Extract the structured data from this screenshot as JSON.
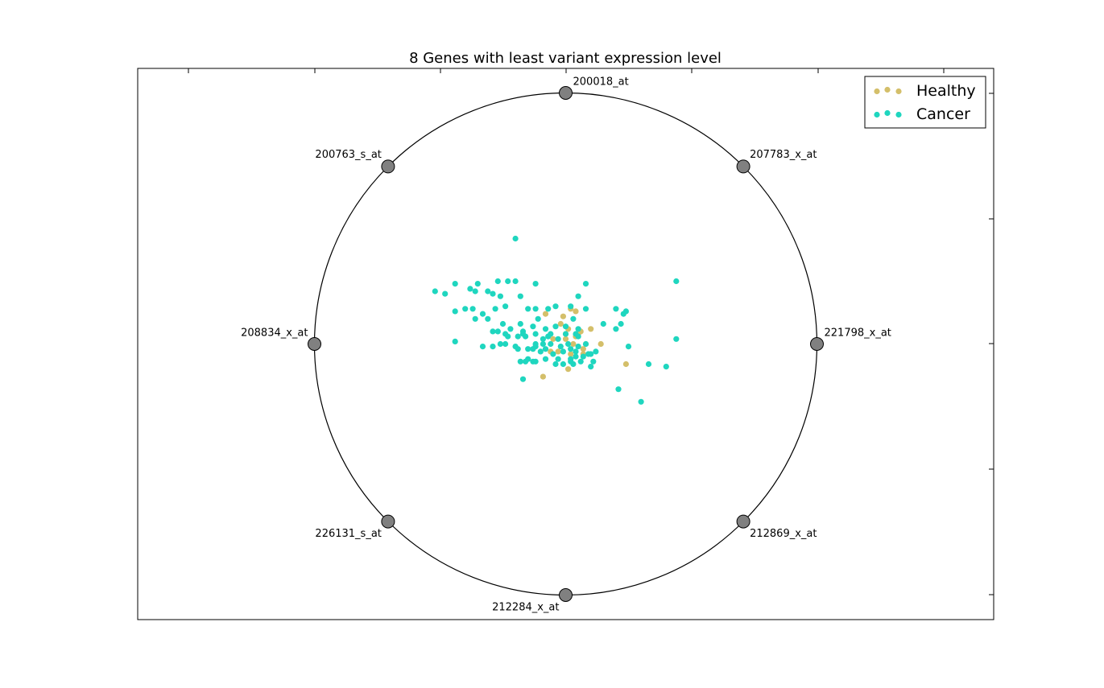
{
  "chart_data": {
    "type": "scatter",
    "subtype": "radviz",
    "title": "8 Genes with least variant expression level",
    "xlim": [
      -1.0,
      1.0
    ],
    "ylim": [
      -1.0,
      1.0
    ],
    "grid": false,
    "legend_position": "top-right",
    "anchors": [
      {
        "label": "221798_x_at",
        "x": 1.0,
        "y": 0.0
      },
      {
        "label": "207783_x_at",
        "x": 0.707,
        "y": 0.707
      },
      {
        "label": "200018_at",
        "x": 0.0,
        "y": 1.0
      },
      {
        "label": "200763_s_at",
        "x": -0.707,
        "y": 0.707
      },
      {
        "label": "208834_x_at",
        "x": -1.0,
        "y": 0.0
      },
      {
        "label": "226131_s_at",
        "x": -0.707,
        "y": -0.707
      },
      {
        "label": "212284_x_at",
        "x": 0.0,
        "y": -1.0
      },
      {
        "label": "212869_x_at",
        "x": 0.707,
        "y": -0.707
      }
    ],
    "series": [
      {
        "name": "Healthy",
        "color": "#d4bf6a",
        "points": [
          [
            -0.08,
            0.12
          ],
          [
            0.02,
            0.14
          ],
          [
            -0.02,
            0.08
          ],
          [
            0.01,
            0.06
          ],
          [
            -0.05,
            0.02
          ],
          [
            0.04,
            0.03
          ],
          [
            0.1,
            0.06
          ],
          [
            -0.06,
            -0.03
          ],
          [
            0.01,
            -0.1
          ],
          [
            0.08,
            0.0
          ],
          [
            0.14,
            0.0
          ],
          [
            0.24,
            -0.08
          ],
          [
            -0.09,
            -0.13
          ],
          [
            0.03,
            0.0
          ],
          [
            0.07,
            -0.02
          ],
          [
            -0.03,
            -0.03
          ],
          [
            0.06,
            0.05
          ],
          [
            0.0,
            0.02
          ],
          [
            0.04,
            0.13
          ],
          [
            -0.01,
            0.11
          ],
          [
            0.0,
            0.04
          ],
          [
            0.02,
            -0.04
          ],
          [
            0.07,
            -0.04
          ],
          [
            0.05,
            0.04
          ]
        ]
      },
      {
        "name": "Cancer",
        "color": "#1fd6bf",
        "points": [
          [
            -0.2,
            0.42
          ],
          [
            -0.12,
            0.24
          ],
          [
            -0.23,
            0.25
          ],
          [
            -0.31,
            0.21
          ],
          [
            -0.38,
            0.22
          ],
          [
            -0.52,
            0.21
          ],
          [
            -0.44,
            0.13
          ],
          [
            -0.4,
            0.14
          ],
          [
            -0.37,
            0.14
          ],
          [
            -0.29,
            0.2
          ],
          [
            -0.26,
            0.19
          ],
          [
            -0.18,
            0.19
          ],
          [
            -0.15,
            0.14
          ],
          [
            -0.12,
            0.14
          ],
          [
            -0.07,
            0.14
          ],
          [
            -0.04,
            0.15
          ],
          [
            0.02,
            0.15
          ],
          [
            0.08,
            0.14
          ],
          [
            -0.33,
            0.12
          ],
          [
            -0.24,
            0.15
          ],
          [
            -0.36,
            0.1
          ],
          [
            -0.31,
            0.1
          ],
          [
            -0.25,
            0.08
          ],
          [
            -0.18,
            0.08
          ],
          [
            -0.11,
            0.1
          ],
          [
            -0.08,
            0.06
          ],
          [
            -0.04,
            0.07
          ],
          [
            0.05,
            0.06
          ],
          [
            -0.27,
            0.05
          ],
          [
            -0.22,
            0.06
          ],
          [
            -0.17,
            0.05
          ],
          [
            -0.13,
            0.07
          ],
          [
            -0.07,
            0.03
          ],
          [
            -0.23,
            0.03
          ],
          [
            -0.17,
            0.04
          ],
          [
            -0.24,
            0.04
          ],
          [
            -0.19,
            0.03
          ],
          [
            -0.12,
            0.04
          ],
          [
            -0.06,
            0.04
          ],
          [
            -0.03,
            0.02
          ],
          [
            0.0,
            0.04
          ],
          [
            0.04,
            0.04
          ],
          [
            -0.09,
            0.02
          ],
          [
            -0.16,
            0.03
          ],
          [
            -0.44,
            0.01
          ],
          [
            -0.33,
            -0.01
          ],
          [
            -0.29,
            -0.01
          ],
          [
            -0.2,
            -0.01
          ],
          [
            -0.19,
            -0.02
          ],
          [
            -0.15,
            -0.02
          ],
          [
            -0.12,
            -0.01
          ],
          [
            -0.09,
            0.0
          ],
          [
            -0.06,
            0.0
          ],
          [
            -0.02,
            -0.01
          ],
          [
            0.02,
            -0.02
          ],
          [
            0.05,
            -0.01
          ],
          [
            0.08,
            0.0
          ],
          [
            -0.08,
            -0.02
          ],
          [
            -0.1,
            -0.03
          ],
          [
            -0.13,
            -0.02
          ],
          [
            -0.05,
            -0.04
          ],
          [
            -0.01,
            -0.03
          ],
          [
            0.04,
            -0.03
          ],
          [
            0.1,
            -0.04
          ],
          [
            0.12,
            -0.03
          ],
          [
            0.04,
            -0.05
          ],
          [
            -0.15,
            -0.06
          ],
          [
            -0.12,
            -0.07
          ],
          [
            -0.08,
            -0.06
          ],
          [
            -0.03,
            -0.06
          ],
          [
            0.02,
            -0.06
          ],
          [
            0.06,
            -0.07
          ],
          [
            -0.18,
            -0.07
          ],
          [
            -0.13,
            -0.07
          ],
          [
            -0.16,
            -0.07
          ],
          [
            -0.04,
            -0.08
          ],
          [
            0.03,
            -0.08
          ],
          [
            0.09,
            -0.04
          ],
          [
            0.1,
            -0.09
          ],
          [
            -0.01,
            -0.08
          ],
          [
            0.02,
            -0.07
          ],
          [
            0.05,
            0.03
          ],
          [
            0.2,
            0.06
          ],
          [
            0.22,
            0.08
          ],
          [
            0.15,
            0.08
          ],
          [
            0.23,
            0.12
          ],
          [
            0.11,
            -0.07
          ],
          [
            0.2,
            0.14
          ],
          [
            0.24,
            0.13
          ],
          [
            0.21,
            -0.18
          ],
          [
            0.3,
            -0.23
          ],
          [
            0.33,
            -0.08
          ],
          [
            0.4,
            -0.09
          ],
          [
            0.44,
            0.02
          ],
          [
            0.44,
            0.25
          ],
          [
            -0.48,
            0.2
          ],
          [
            -0.28,
            0.14
          ],
          [
            -0.26,
            0.0
          ],
          [
            -0.44,
            0.24
          ],
          [
            -0.27,
            0.25
          ],
          [
            0.25,
            -0.01
          ],
          [
            0.08,
            0.24
          ],
          [
            0.05,
            0.19
          ],
          [
            0.03,
            0.1
          ],
          [
            -0.2,
            0.25
          ],
          [
            -0.24,
            0.0
          ],
          [
            -0.29,
            0.05
          ],
          [
            -0.35,
            0.24
          ],
          [
            -0.36,
            0.21
          ],
          [
            -0.12,
            0.0
          ],
          [
            0.01,
            0.0
          ],
          [
            -0.17,
            -0.14
          ],
          [
            0.07,
            -0.05
          ],
          [
            0.0,
            0.07
          ]
        ]
      }
    ]
  }
}
